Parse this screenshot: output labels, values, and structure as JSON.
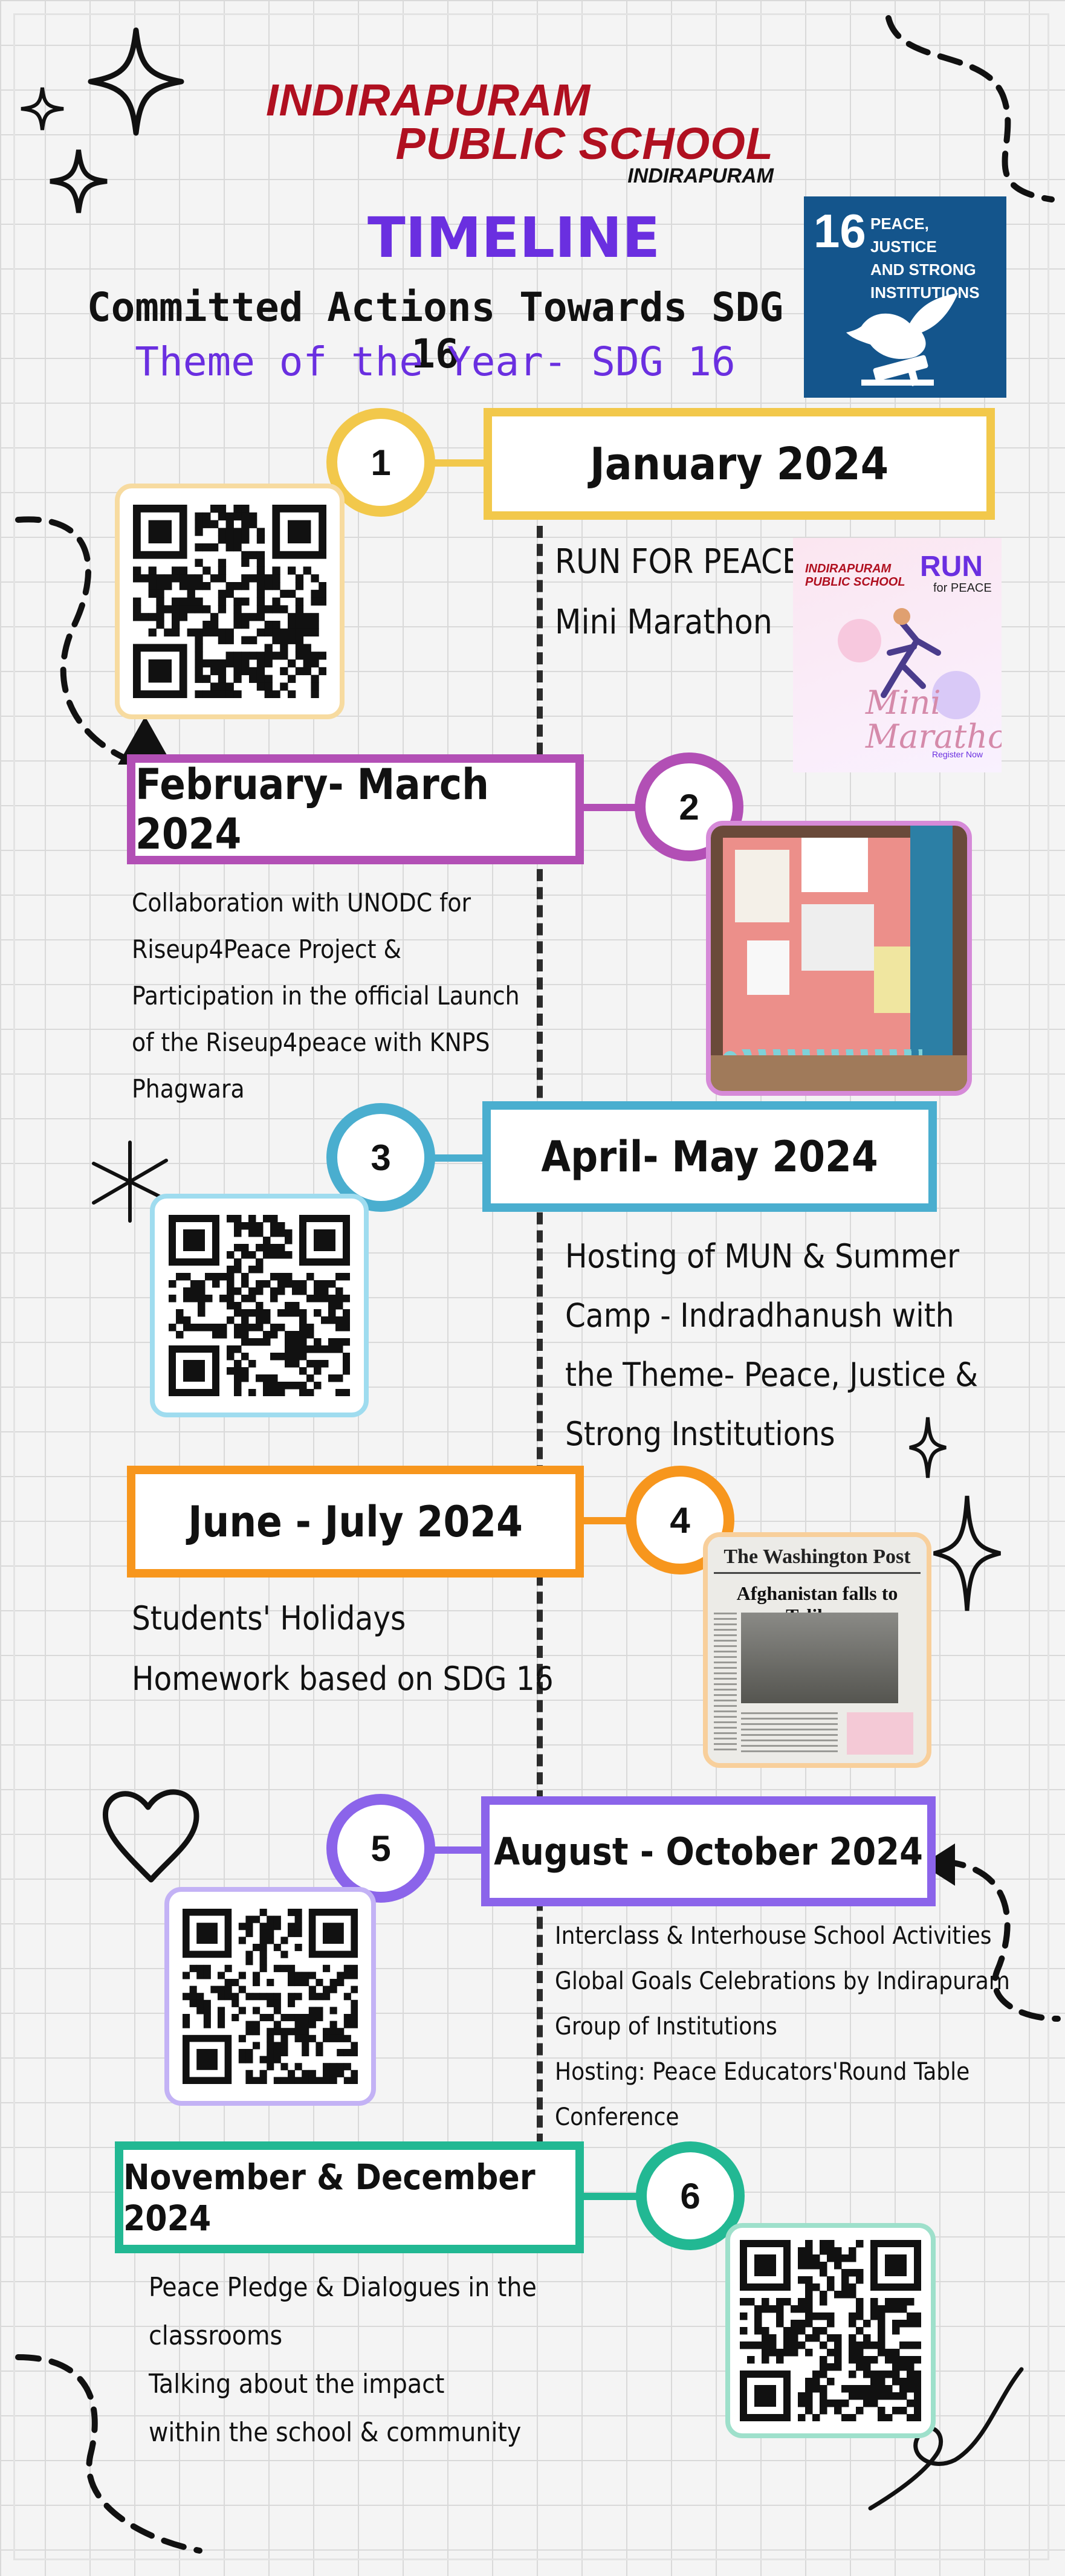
{
  "header": {
    "school_line1": "INDIRAPURAM",
    "school_line2": "PUBLIC SCHOOL",
    "school_sub": "INDIRAPURAM",
    "title": "TIMELINE",
    "subtitle": "Committed Actions Towards SDG 16",
    "theme": "Theme of the Year- SDG 16"
  },
  "sdg_badge": {
    "number": "16",
    "text_line1": "PEACE, JUSTICE",
    "text_line2": "AND STRONG",
    "text_line3": "INSTITUTIONS",
    "color": "#14558c",
    "icon": "dove-gavel-icon"
  },
  "events": [
    {
      "step": "1",
      "period": "January 2024",
      "color": "#f2c84b",
      "lines": [
        "RUN FOR PEACE",
        "Mini Marathon"
      ],
      "media": "qr-code",
      "poster": {
        "brand": "INDIRAPURAM PUBLIC SCHOOL",
        "run": "RUN",
        "for_peace": "for PEACE",
        "script": "Mini Marathon",
        "register": "Register Now"
      }
    },
    {
      "step": "2",
      "period": "February- March 2024",
      "color": "#b24fb5",
      "lines": [
        "Collaboration with UNODC for",
        "Riseup4Peace Project &",
        "Participation in the official Launch",
        "of the Riseup4peace with KNPS",
        "Phagwara"
      ],
      "media": "photo-board"
    },
    {
      "step": "3",
      "period": "April- May  2024",
      "color": "#4aaecf",
      "lines": [
        "Hosting of MUN & Summer",
        "Camp - Indradhanush with",
        "the Theme- Peace, Justice &",
        "Strong Institutions"
      ],
      "media": "qr-code"
    },
    {
      "step": "4",
      "period": "June - July 2024",
      "color": "#f7961d",
      "lines": [
        "Students' Holidays",
        "Homework based on SDG 16"
      ],
      "media": "newspaper",
      "newspaper": {
        "masthead": "The Washington Post",
        "headline": "Afghanistan falls to Taliban"
      }
    },
    {
      "step": "5",
      "period": "August - October 2024",
      "color": "#8b64ea",
      "lines": [
        "Interclass & Interhouse School Activities",
        "Global Goals Celebrations by Indirapuram",
        "Group of Institutions",
        "Hosting: Peace  Educators'Round Table",
        "Conference"
      ],
      "media": "qr-code"
    },
    {
      "step": "6",
      "period": "November & December 2024",
      "color": "#22b893",
      "lines": [
        "Peace Pledge & Dialogues in the",
        "classrooms",
        "Talking about the impact",
        "within the school & community"
      ],
      "media": "qr-code"
    }
  ]
}
